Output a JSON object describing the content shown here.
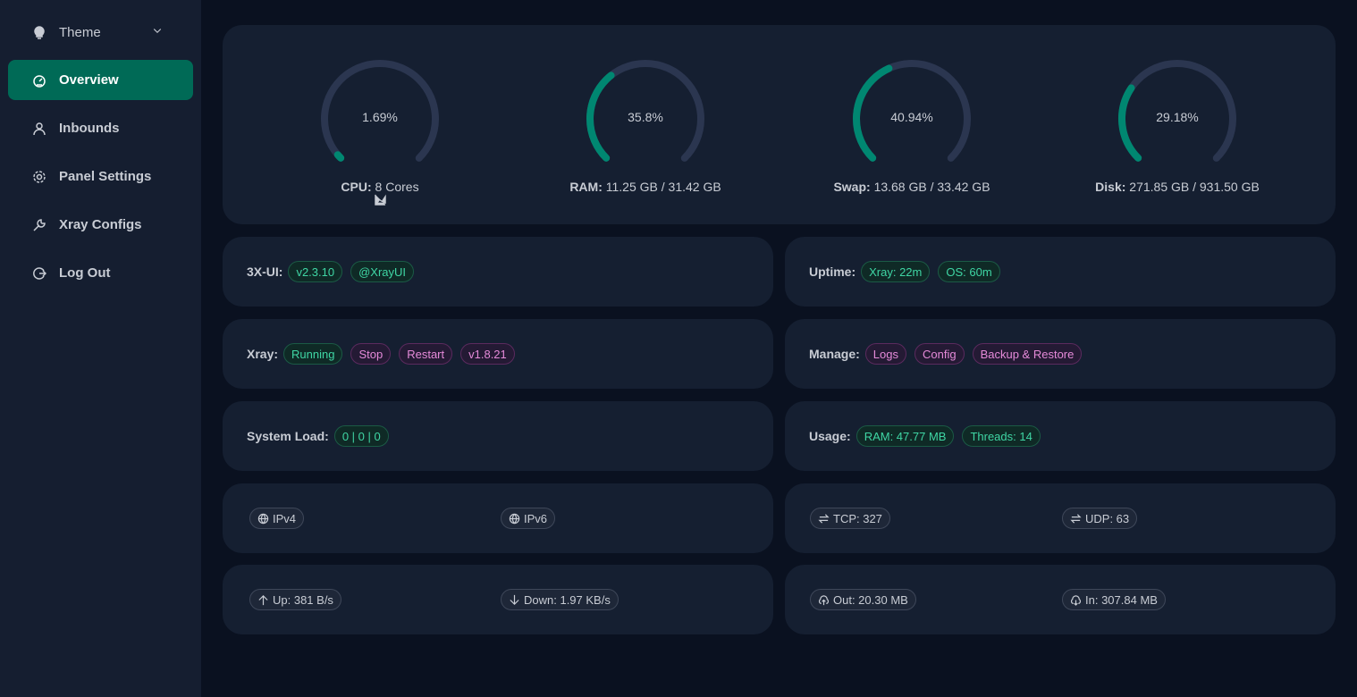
{
  "colors": {
    "accent": "#008771",
    "track": "#2b3650"
  },
  "sidebar": {
    "items": [
      {
        "label": "Theme",
        "icon": "bulb-icon"
      },
      {
        "label": "Overview",
        "icon": "dashboard-icon",
        "active": true
      },
      {
        "label": "Inbounds",
        "icon": "user-icon"
      },
      {
        "label": "Panel Settings",
        "icon": "gear-icon"
      },
      {
        "label": "Xray Configs",
        "icon": "wrench-icon"
      },
      {
        "label": "Log Out",
        "icon": "logout-icon"
      }
    ]
  },
  "gauges": [
    {
      "value": 1.69,
      "text": "1.69%",
      "label": "CPU:",
      "detail": "8 Cores"
    },
    {
      "value": 35.8,
      "text": "35.8%",
      "label": "RAM:",
      "detail": "11.25 GB / 31.42 GB"
    },
    {
      "value": 40.94,
      "text": "40.94%",
      "label": "Swap:",
      "detail": "13.68 GB / 33.42 GB"
    },
    {
      "value": 29.18,
      "text": "29.18%",
      "label": "Disk:",
      "detail": "271.85 GB / 931.50 GB"
    }
  ],
  "panel": {
    "label": "3X-UI:",
    "version": "v2.3.10",
    "channel": "@XrayUI"
  },
  "uptime": {
    "label": "Uptime:",
    "xray": "Xray: 22m",
    "os": "OS: 60m"
  },
  "xray": {
    "label": "Xray:",
    "status": "Running",
    "stop": "Stop",
    "restart": "Restart",
    "version": "v1.8.21"
  },
  "manage": {
    "label": "Manage:",
    "logs": "Logs",
    "config": "Config",
    "backup": "Backup & Restore"
  },
  "load": {
    "label": "System Load:",
    "value": "0 | 0 | 0"
  },
  "usage": {
    "label": "Usage:",
    "ram": "RAM: 47.77 MB",
    "threads": "Threads: 14"
  },
  "net": {
    "ipv4": "IPv4",
    "ipv6": "IPv6",
    "tcp": "TCP: 327",
    "udp": "UDP: 63",
    "up": "Up: 381 B/s",
    "down": "Down: 1.97 KB/s",
    "out": "Out: 20.30 MB",
    "in": "In: 307.84 MB"
  }
}
